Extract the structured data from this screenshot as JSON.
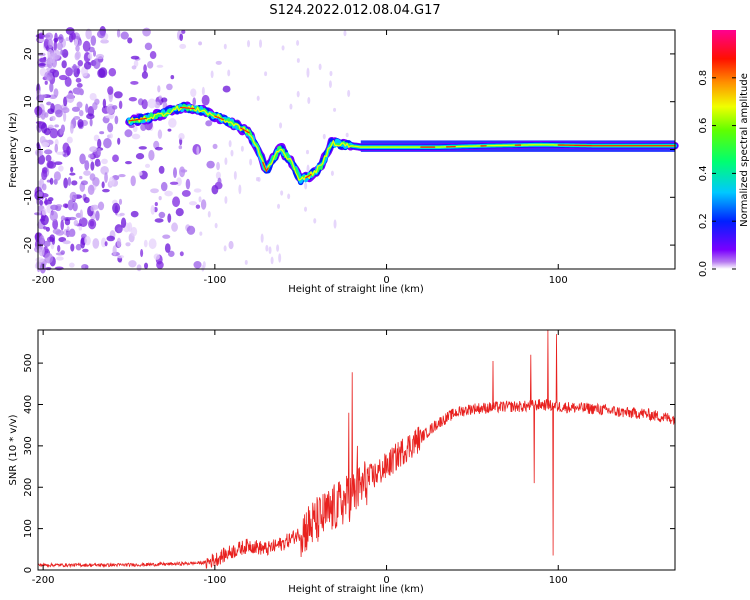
{
  "figure": {
    "title": "S124.2022.012.08.04.G17"
  },
  "colors": {
    "snr_line": "#e8211f",
    "frame": "#000000",
    "background": "#ffffff"
  },
  "chart_data": [
    {
      "type": "heatmap",
      "name": "spectrogram",
      "xlabel": "Height of straight line (km)",
      "ylabel": "Frequency (Hz)",
      "xlim": [
        -203,
        168
      ],
      "ylim": [
        -25,
        25
      ],
      "xticks": [
        -200,
        -100,
        0,
        100
      ],
      "yticks": [
        20,
        10,
        0,
        -10,
        -20
      ],
      "colorbar": {
        "label": "Normalized spectral amplitude",
        "range": [
          0,
          1
        ],
        "ticks": [
          0.0,
          0.2,
          0.4,
          0.6,
          0.8
        ],
        "colormap": "rainbow (purple-blue-cyan-green-yellow-red-magenta)"
      },
      "ridge": [
        {
          "x": -150,
          "y": 6.0
        },
        {
          "x": -140,
          "y": 6.5
        },
        {
          "x": -130,
          "y": 7.5
        },
        {
          "x": -120,
          "y": 8.8
        },
        {
          "x": -110,
          "y": 8.5
        },
        {
          "x": -100,
          "y": 7.0
        },
        {
          "x": -90,
          "y": 5.5
        },
        {
          "x": -80,
          "y": 3.5
        },
        {
          "x": -75,
          "y": 0.0
        },
        {
          "x": -70,
          "y": -4.5
        },
        {
          "x": -62,
          "y": 0.5
        },
        {
          "x": -55,
          "y": -3.0
        },
        {
          "x": -50,
          "y": -6.5
        },
        {
          "x": -45,
          "y": -5.5
        },
        {
          "x": -38,
          "y": -3.5
        },
        {
          "x": -32,
          "y": 1.5
        },
        {
          "x": -25,
          "y": 1.0
        },
        {
          "x": -15,
          "y": 0.5
        },
        {
          "x": 0,
          "y": 0.5
        },
        {
          "x": 30,
          "y": 0.5
        },
        {
          "x": 60,
          "y": 0.8
        },
        {
          "x": 90,
          "y": 1.0
        },
        {
          "x": 120,
          "y": 0.8
        },
        {
          "x": 168,
          "y": 0.8
        }
      ],
      "noise_region_x": [
        -203,
        -110
      ]
    },
    {
      "type": "line",
      "name": "snr",
      "xlabel": "Height of straight line (km)",
      "ylabel": "SNR (10 * v/v)",
      "xlim": [
        -203,
        168
      ],
      "ylim": [
        0,
        580
      ],
      "xticks": [
        -200,
        -100,
        0,
        100
      ],
      "yticks": [
        0,
        100,
        200,
        300,
        400,
        500
      ],
      "series": [
        {
          "x": [
            -203,
            -180,
            -160,
            -140,
            -120,
            -105,
            -100,
            -90,
            -80,
            -70,
            -60,
            -50,
            -40,
            -30,
            -20,
            -10,
            0,
            10,
            20,
            30,
            40,
            50,
            60,
            70,
            80,
            90,
            100,
            110,
            120,
            130,
            140,
            150,
            160,
            168
          ],
          "values": [
            12,
            12,
            12,
            13,
            15,
            18,
            25,
            45,
            60,
            50,
            65,
            90,
            120,
            150,
            180,
            220,
            250,
            290,
            320,
            355,
            380,
            390,
            392,
            395,
            395,
            400,
            395,
            392,
            390,
            385,
            380,
            378,
            370,
            365
          ]
        }
      ],
      "spikes": [
        {
          "x": -20,
          "y": 478
        },
        {
          "x": -22,
          "y": 380
        },
        {
          "x": -17,
          "y": 300
        },
        {
          "x": 62,
          "y": 505
        },
        {
          "x": 84,
          "y": 520
        },
        {
          "x": 86,
          "y": 210
        },
        {
          "x": 94,
          "y": 580
        },
        {
          "x": 97,
          "y": 35
        },
        {
          "x": 99,
          "y": 570
        }
      ]
    }
  ]
}
